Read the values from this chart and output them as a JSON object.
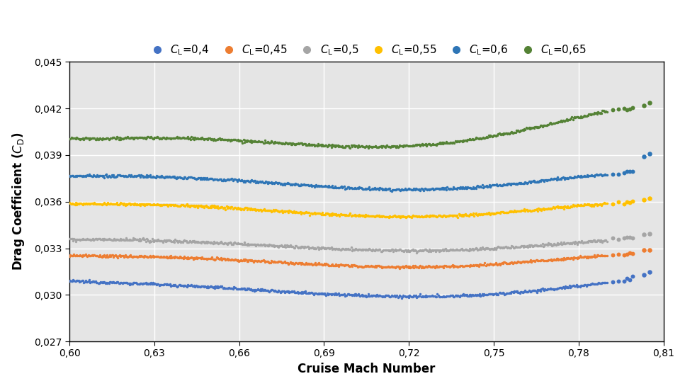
{
  "xlabel": "Cruise Mach Number",
  "ylabel": "Drag Coefficient ($C_\\mathrm{D}$)",
  "xlim": [
    0.6,
    0.81
  ],
  "ylim": [
    0.027,
    0.045
  ],
  "xticks": [
    0.6,
    0.63,
    0.66,
    0.69,
    0.72,
    0.75,
    0.78,
    0.81
  ],
  "yticks": [
    0.027,
    0.03,
    0.033,
    0.036,
    0.039,
    0.042,
    0.045
  ],
  "background_color": "#e5e5e5",
  "series": [
    {
      "label": "$\\mathit{C}_\\mathrm{L}$=0,4",
      "color": "#4472C4",
      "x_keys": [
        0.6,
        0.615,
        0.63,
        0.65,
        0.7,
        0.73,
        0.76,
        0.79
      ],
      "y_keys": [
        0.0309,
        0.0308,
        0.0307,
        0.0305,
        0.03,
        0.0299,
        0.0302,
        0.0308
      ],
      "scatter1_x": [
        0.792,
        0.794,
        0.796,
        0.797,
        0.798,
        0.799
      ],
      "scatter1_y": [
        0.0308,
        0.0309,
        0.0309,
        0.031,
        0.031,
        0.0311
      ],
      "scatter2_x": [
        0.803,
        0.805
      ],
      "scatter2_y": [
        0.0313,
        0.0315
      ]
    },
    {
      "label": "$\\mathit{C}_\\mathrm{L}$=0,45",
      "color": "#ED7D31",
      "x_keys": [
        0.6,
        0.615,
        0.63,
        0.65,
        0.7,
        0.73,
        0.76,
        0.79
      ],
      "y_keys": [
        0.03255,
        0.0325,
        0.03245,
        0.03235,
        0.03185,
        0.03185,
        0.0321,
        0.03255
      ],
      "scatter1_x": [
        0.792,
        0.794,
        0.796,
        0.797,
        0.798,
        0.799
      ],
      "scatter1_y": [
        0.03258,
        0.0326,
        0.03262,
        0.03265,
        0.03268,
        0.0327
      ],
      "scatter2_x": [
        0.803,
        0.805
      ],
      "scatter2_y": [
        0.03285,
        0.0329
      ]
    },
    {
      "label": "$\\mathit{C}_\\mathrm{L}$=0,5",
      "color": "#A5A5A5",
      "x_keys": [
        0.6,
        0.615,
        0.63,
        0.65,
        0.7,
        0.73,
        0.76,
        0.79
      ],
      "y_keys": [
        0.0336,
        0.03355,
        0.0335,
        0.0334,
        0.0329,
        0.0329,
        0.0331,
        0.0335
      ],
      "scatter1_x": [
        0.792,
        0.794,
        0.796,
        0.797,
        0.798,
        0.799
      ],
      "scatter1_y": [
        0.03355,
        0.0336,
        0.03362,
        0.03365,
        0.03368,
        0.0337
      ],
      "scatter2_x": [
        0.803,
        0.805
      ],
      "scatter2_y": [
        0.03385,
        0.03395
      ]
    },
    {
      "label": "$\\mathit{C}_\\mathrm{L}$=0,55",
      "color": "#FFC000",
      "x_keys": [
        0.6,
        0.615,
        0.63,
        0.65,
        0.7,
        0.73,
        0.76,
        0.79
      ],
      "y_keys": [
        0.0359,
        0.03585,
        0.0358,
        0.0357,
        0.0351,
        0.0351,
        0.0354,
        0.03585
      ],
      "scatter1_x": [
        0.792,
        0.794,
        0.796,
        0.797,
        0.798,
        0.799
      ],
      "scatter1_y": [
        0.03588,
        0.0359,
        0.03592,
        0.03594,
        0.03596,
        0.03598
      ],
      "scatter2_x": [
        0.803,
        0.805
      ],
      "scatter2_y": [
        0.03612,
        0.03625
      ]
    },
    {
      "label": "$\\mathit{C}_\\mathrm{L}$=0,6",
      "color": "#4472C4",
      "color2": "#2E75B6",
      "x_keys": [
        0.6,
        0.615,
        0.63,
        0.65,
        0.7,
        0.73,
        0.76,
        0.79
      ],
      "y_keys": [
        0.03768,
        0.03765,
        0.03762,
        0.0375,
        0.03685,
        0.03685,
        0.0372,
        0.03775
      ],
      "scatter1_x": [
        0.792,
        0.794,
        0.796,
        0.797,
        0.798,
        0.799
      ],
      "scatter1_y": [
        0.03778,
        0.03782,
        0.03786,
        0.03789,
        0.03792,
        0.03795
      ],
      "scatter2_x": [
        0.803,
        0.805
      ],
      "scatter2_y": [
        0.03895,
        0.0391
      ]
    },
    {
      "label": "$\\mathit{C}_\\mathrm{L}$=0,65",
      "color": "#548235",
      "x_keys": [
        0.6,
        0.615,
        0.63,
        0.65,
        0.7,
        0.73,
        0.76,
        0.79
      ],
      "y_keys": [
        0.04005,
        0.0401,
        0.0401,
        0.04005,
        0.03955,
        0.03975,
        0.0406,
        0.04185
      ],
      "scatter1_x": [
        0.792,
        0.794,
        0.796,
        0.797,
        0.798,
        0.799
      ],
      "scatter1_y": [
        0.04188,
        0.04193,
        0.04198,
        0.042,
        0.04204,
        0.04207
      ],
      "scatter2_x": [
        0.803,
        0.805
      ],
      "scatter2_y": [
        0.0422,
        0.0424
      ]
    }
  ]
}
